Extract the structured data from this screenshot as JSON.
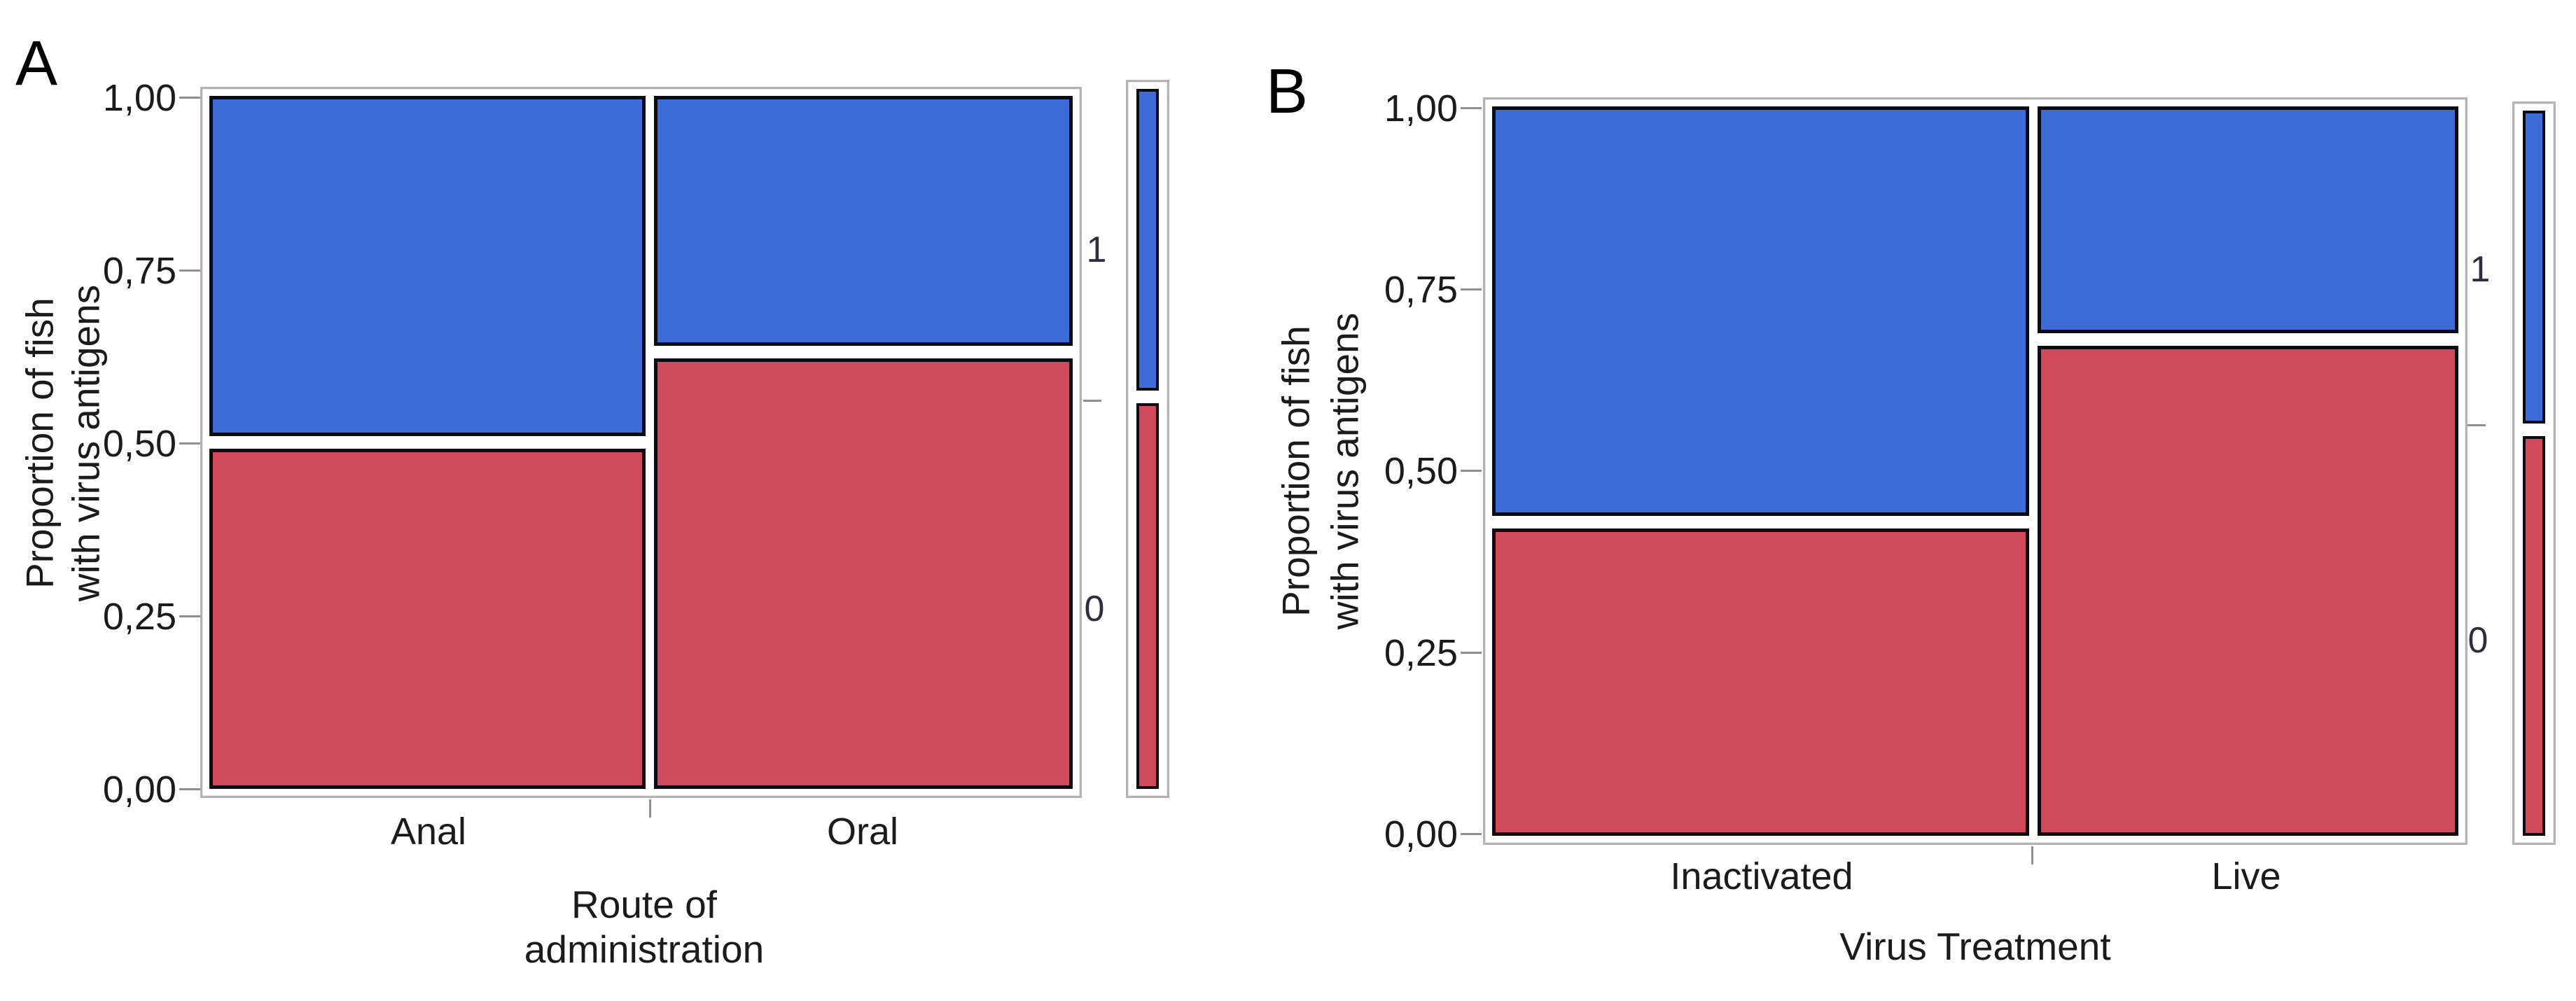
{
  "panels": [
    {
      "label": "A",
      "y_title_lines": [
        "Proportion of fish",
        "with virus antigens"
      ],
      "y_ticks": [
        "1,00",
        "0,75",
        "0,50",
        "0,25",
        "0,00"
      ],
      "x_categories": [
        "Anal",
        "Oral"
      ],
      "x_title_lines": [
        "Route of",
        "administration"
      ],
      "right_axis_labels": [
        "1",
        "0"
      ]
    },
    {
      "label": "B",
      "y_title_lines": [
        "Proportion of fish",
        "with virus antigens"
      ],
      "y_ticks": [
        "1,00",
        "0,75",
        "0,50",
        "0,25",
        "0,00"
      ],
      "x_categories": [
        "Inactivated",
        "Live"
      ],
      "x_title_lines": [
        "Virus Treatment"
      ],
      "right_axis_labels": [
        "1",
        "0"
      ]
    }
  ],
  "colors": {
    "level_1_blue": "#3d6cd8",
    "level_0_red": "#cf4a5b",
    "cell_border": "#0b0b14",
    "frame_gray": "#b3b3b3",
    "tick_gray": "#8f8f8f",
    "text": "#1b1b1b"
  },
  "chart_data": [
    {
      "type": "mosaic",
      "panel": "A",
      "title": "",
      "xlabel": "Route of administration",
      "ylabel": "Proportion of fish with virus antigens",
      "ylim": [
        0,
        1
      ],
      "ytick_values": [
        0,
        0.25,
        0.5,
        0.75,
        1
      ],
      "ytick_labels": [
        "0,00",
        "0,25",
        "0,50",
        "0,75",
        "1,00"
      ],
      "decimal_separator": ",",
      "categories": [
        "Anal",
        "Oral"
      ],
      "category_widths": [
        0.51,
        0.49
      ],
      "series": [
        {
          "name": "1",
          "color": "#3d6cd8",
          "values": [
            0.5,
            0.37
          ]
        },
        {
          "name": "0",
          "color": "#cf4a5b",
          "values": [
            0.5,
            0.63
          ]
        }
      ],
      "legend": {
        "position": "right",
        "labels": [
          "1",
          "0"
        ],
        "marginal": {
          "1": 0.44,
          "0": 0.56
        }
      },
      "grid": false
    },
    {
      "type": "mosaic",
      "panel": "B",
      "title": "",
      "xlabel": "Virus Treatment",
      "ylabel": "Proportion of fish with virus antigens",
      "ylim": [
        0,
        1
      ],
      "ytick_values": [
        0,
        0.25,
        0.5,
        0.75,
        1
      ],
      "ytick_labels": [
        "0,00",
        "0,25",
        "0,50",
        "0,75",
        "1,00"
      ],
      "decimal_separator": ",",
      "categories": [
        "Inactivated",
        "Live"
      ],
      "category_widths": [
        0.56,
        0.44
      ],
      "series": [
        {
          "name": "1",
          "color": "#3d6cd8",
          "values": [
            0.57,
            0.32
          ]
        },
        {
          "name": "0",
          "color": "#cf4a5b",
          "values": [
            0.43,
            0.68
          ]
        }
      ],
      "legend": {
        "position": "right",
        "labels": [
          "1",
          "0"
        ],
        "marginal": {
          "1": 0.44,
          "0": 0.56
        }
      },
      "grid": false
    }
  ]
}
